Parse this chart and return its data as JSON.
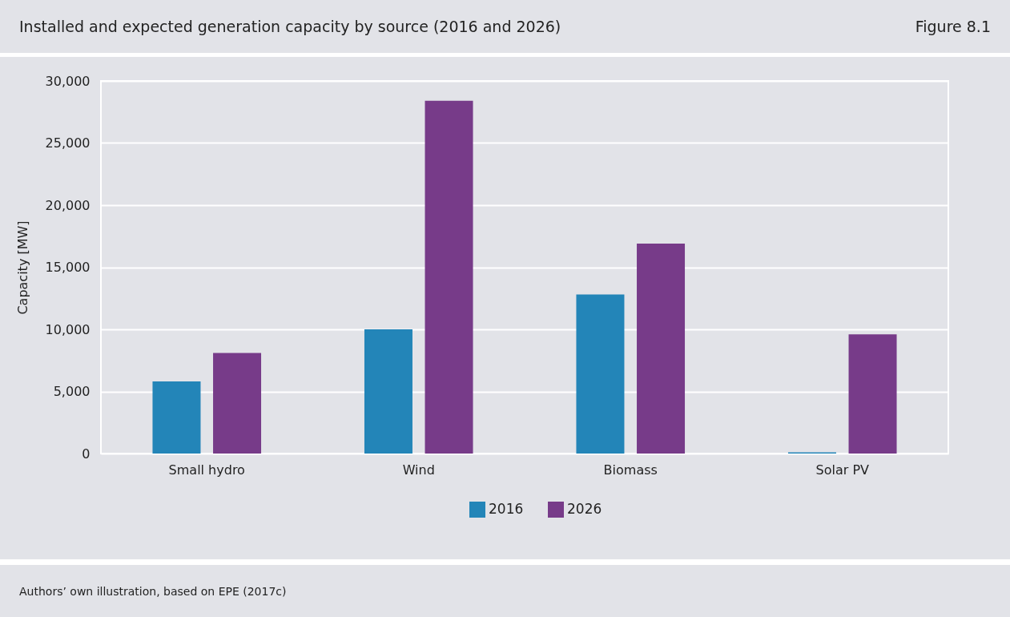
{
  "chart_data": {
    "type": "bar",
    "title": "Installed and expected generation capacity by source (2016 and 2026)",
    "ylabel": "Capacity  [MW]",
    "categories": [
      "Small hydro",
      "Wind",
      "Biomass",
      "Solar PV"
    ],
    "series": [
      {
        "name": "2016",
        "color": "#2385b8",
        "values": [
          5800,
          10000,
          12800,
          100
        ]
      },
      {
        "name": "2026",
        "color": "#773b89",
        "values": [
          8100,
          28400,
          16900,
          9600
        ]
      }
    ],
    "ylim": [
      0,
      30000
    ],
    "yticks": [
      0,
      {
        "value": 5000,
        "label": "5,000"
      },
      {
        "value": 10000,
        "label": "10,000"
      },
      {
        "value": 15000,
        "label": "15,000"
      },
      {
        "value": 20000,
        "label": "20,000"
      },
      {
        "value": 25000,
        "label": "25,000"
      },
      {
        "value": 30000,
        "label": "30,000"
      }
    ],
    "grid": "y",
    "legend": "bottom",
    "annotations": [
      "Figure 8.1",
      "Authors’ own illustration, based on EPE (2017c)"
    ]
  }
}
